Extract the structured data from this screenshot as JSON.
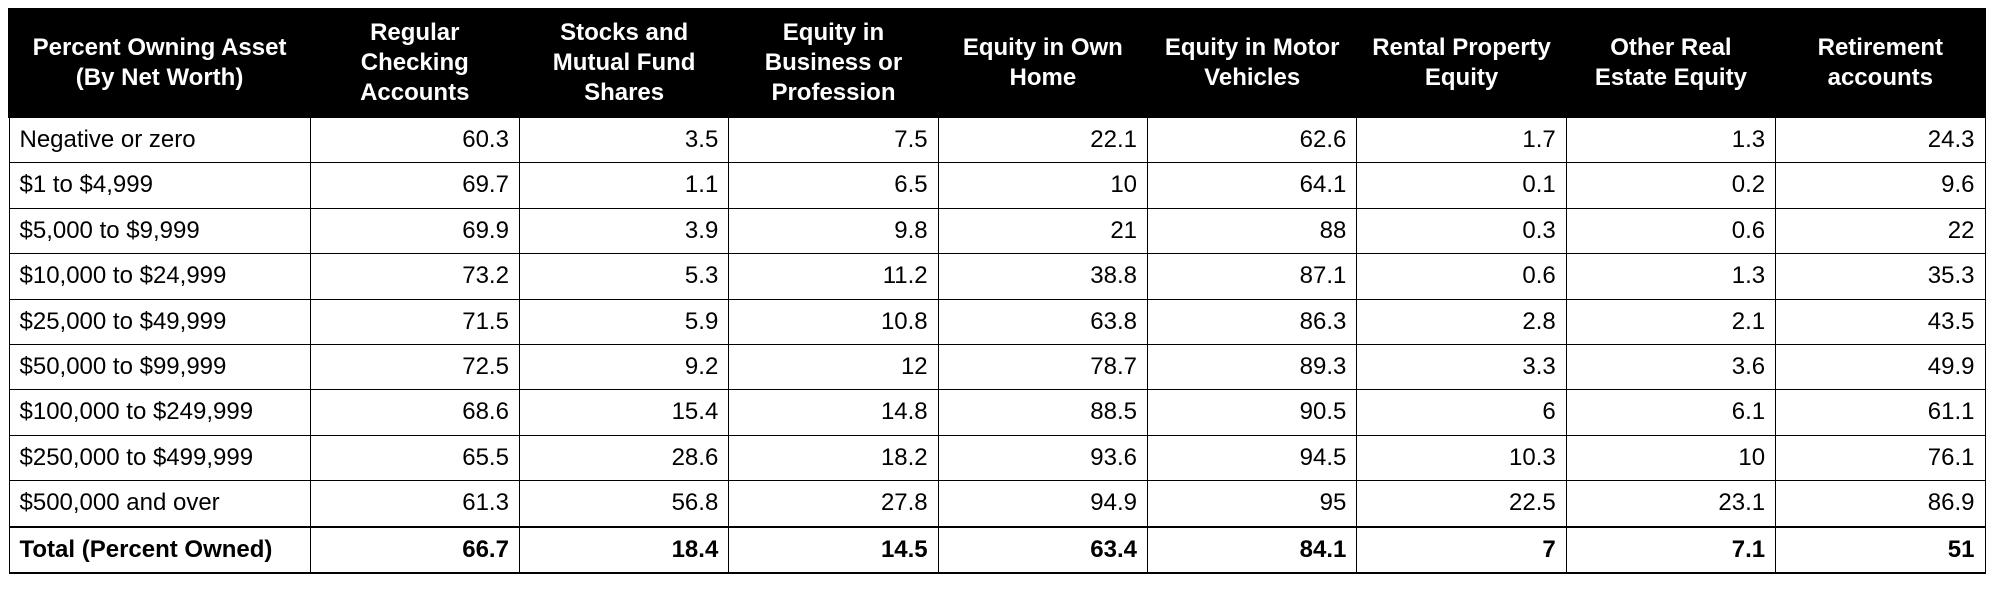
{
  "table": {
    "columns": [
      "Percent Owning Asset (By Net Worth)",
      "Regular Checking Accounts",
      "Stocks and Mutual Fund Shares",
      "Equity in Business or Profession",
      "Equity in Own Home",
      "Equity in Motor Vehicles",
      "Rental Property Equity",
      "Other Real Estate Equity",
      "Retirement accounts"
    ],
    "rows": [
      {
        "label": "Negative or zero",
        "values": [
          "60.3",
          "3.5",
          "7.5",
          "22.1",
          "62.6",
          "1.7",
          "1.3",
          "24.3"
        ]
      },
      {
        "label": "$1 to $4,999",
        "values": [
          "69.7",
          "1.1",
          "6.5",
          "10",
          "64.1",
          "0.1",
          "0.2",
          "9.6"
        ]
      },
      {
        "label": "$5,000 to $9,999",
        "values": [
          "69.9",
          "3.9",
          "9.8",
          "21",
          "88",
          "0.3",
          "0.6",
          "22"
        ]
      },
      {
        "label": "$10,000 to $24,999",
        "values": [
          "73.2",
          "5.3",
          "11.2",
          "38.8",
          "87.1",
          "0.6",
          "1.3",
          "35.3"
        ]
      },
      {
        "label": "$25,000 to $49,999",
        "values": [
          "71.5",
          "5.9",
          "10.8",
          "63.8",
          "86.3",
          "2.8",
          "2.1",
          "43.5"
        ]
      },
      {
        "label": "$50,000 to $99,999",
        "values": [
          "72.5",
          "9.2",
          "12",
          "78.7",
          "89.3",
          "3.3",
          "3.6",
          "49.9"
        ]
      },
      {
        "label": "$100,000 to $249,999",
        "values": [
          "68.6",
          "15.4",
          "14.8",
          "88.5",
          "90.5",
          "6",
          "6.1",
          "61.1"
        ]
      },
      {
        "label": "$250,000 to $499,999",
        "values": [
          "65.5",
          "28.6",
          "18.2",
          "93.6",
          "94.5",
          "10.3",
          "10",
          "76.1"
        ]
      },
      {
        "label": "$500,000 and over",
        "values": [
          "61.3",
          "56.8",
          "27.8",
          "94.9",
          "95",
          "22.5",
          "23.1",
          "86.9"
        ]
      }
    ],
    "total": {
      "label": "Total (Percent Owned)",
      "values": [
        "66.7",
        "18.4",
        "14.5",
        "63.4",
        "84.1",
        "7",
        "7.1",
        "51"
      ]
    },
    "header_bg": "#000000",
    "header_fg": "#ffffff",
    "border_color": "#000000",
    "body_fontsize": 24,
    "header_fontsize": 24
  }
}
